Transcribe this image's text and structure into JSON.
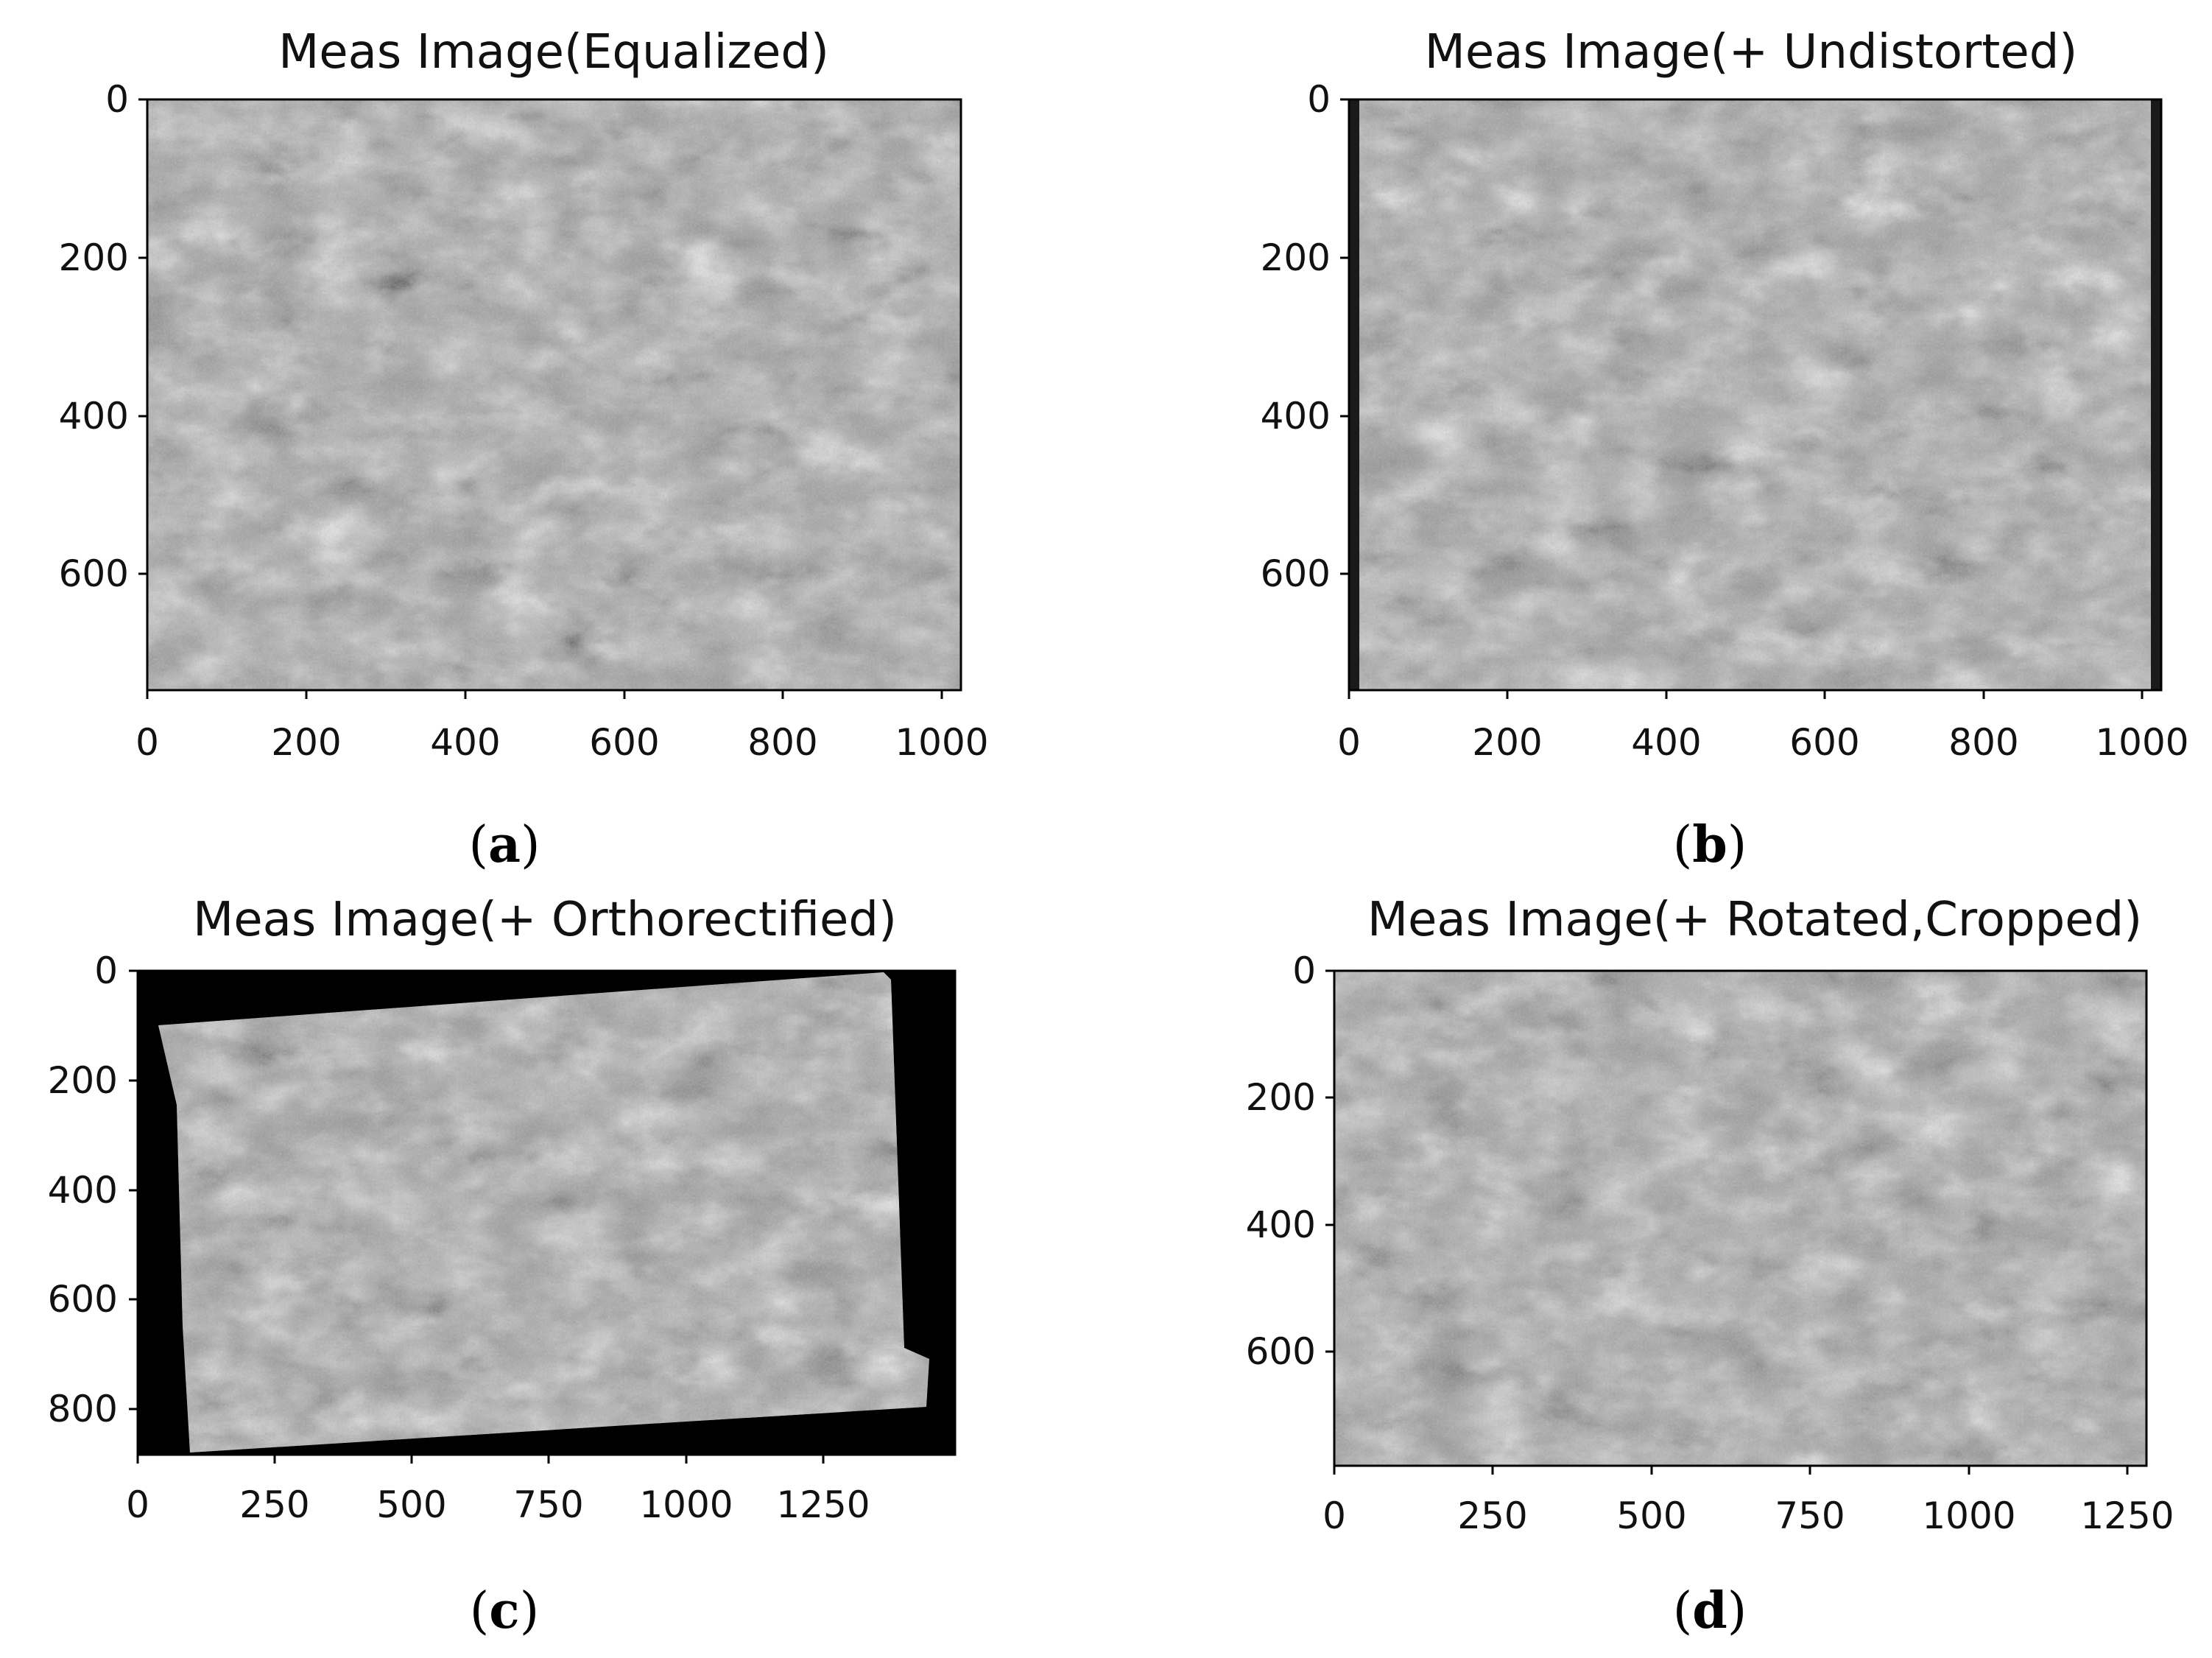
{
  "panels": [
    {
      "id": "a",
      "title": "Meas Image(Equalized)",
      "caption_letter": "a",
      "xticks": [
        "0",
        "200",
        "400",
        "600",
        "800",
        "1000"
      ],
      "yticks": [
        "0",
        "200",
        "400",
        "600"
      ],
      "xlim": [
        0,
        1024
      ],
      "ylim": [
        0,
        748
      ],
      "image_kind": "equalized"
    },
    {
      "id": "b",
      "title": "Meas Image(+ Undistorted)",
      "caption_letter": "b",
      "xticks": [
        "0",
        "200",
        "400",
        "600",
        "800",
        "1000"
      ],
      "yticks": [
        "0",
        "200",
        "400",
        "600"
      ],
      "xlim": [
        0,
        1024
      ],
      "ylim": [
        0,
        748
      ],
      "image_kind": "undistorted"
    },
    {
      "id": "c",
      "title": "Meas Image(+ Orthorectified)",
      "caption_letter": "c",
      "xticks": [
        "0",
        "250",
        "500",
        "750",
        "1000",
        "1250"
      ],
      "yticks": [
        "0",
        "200",
        "400",
        "600",
        "800"
      ],
      "xlim": [
        0,
        1490
      ],
      "ylim": [
        0,
        885
      ],
      "image_kind": "orthorectified"
    },
    {
      "id": "d",
      "title": "Meas Image(+ Rotated,Cropped)",
      "caption_letter": "d",
      "xticks": [
        "0",
        "250",
        "500",
        "750",
        "1000",
        "1250"
      ],
      "yticks": [
        "0",
        "200",
        "400",
        "600"
      ],
      "xlim": [
        0,
        1280
      ],
      "ylim": [
        0,
        780
      ],
      "image_kind": "rotated-cropped"
    }
  ],
  "colors": {
    "terrain_light": "#b8b8b8",
    "terrain_mid": "#8a8a8a",
    "terrain_dark": "#4a4a4a",
    "background_black": "#000000"
  }
}
